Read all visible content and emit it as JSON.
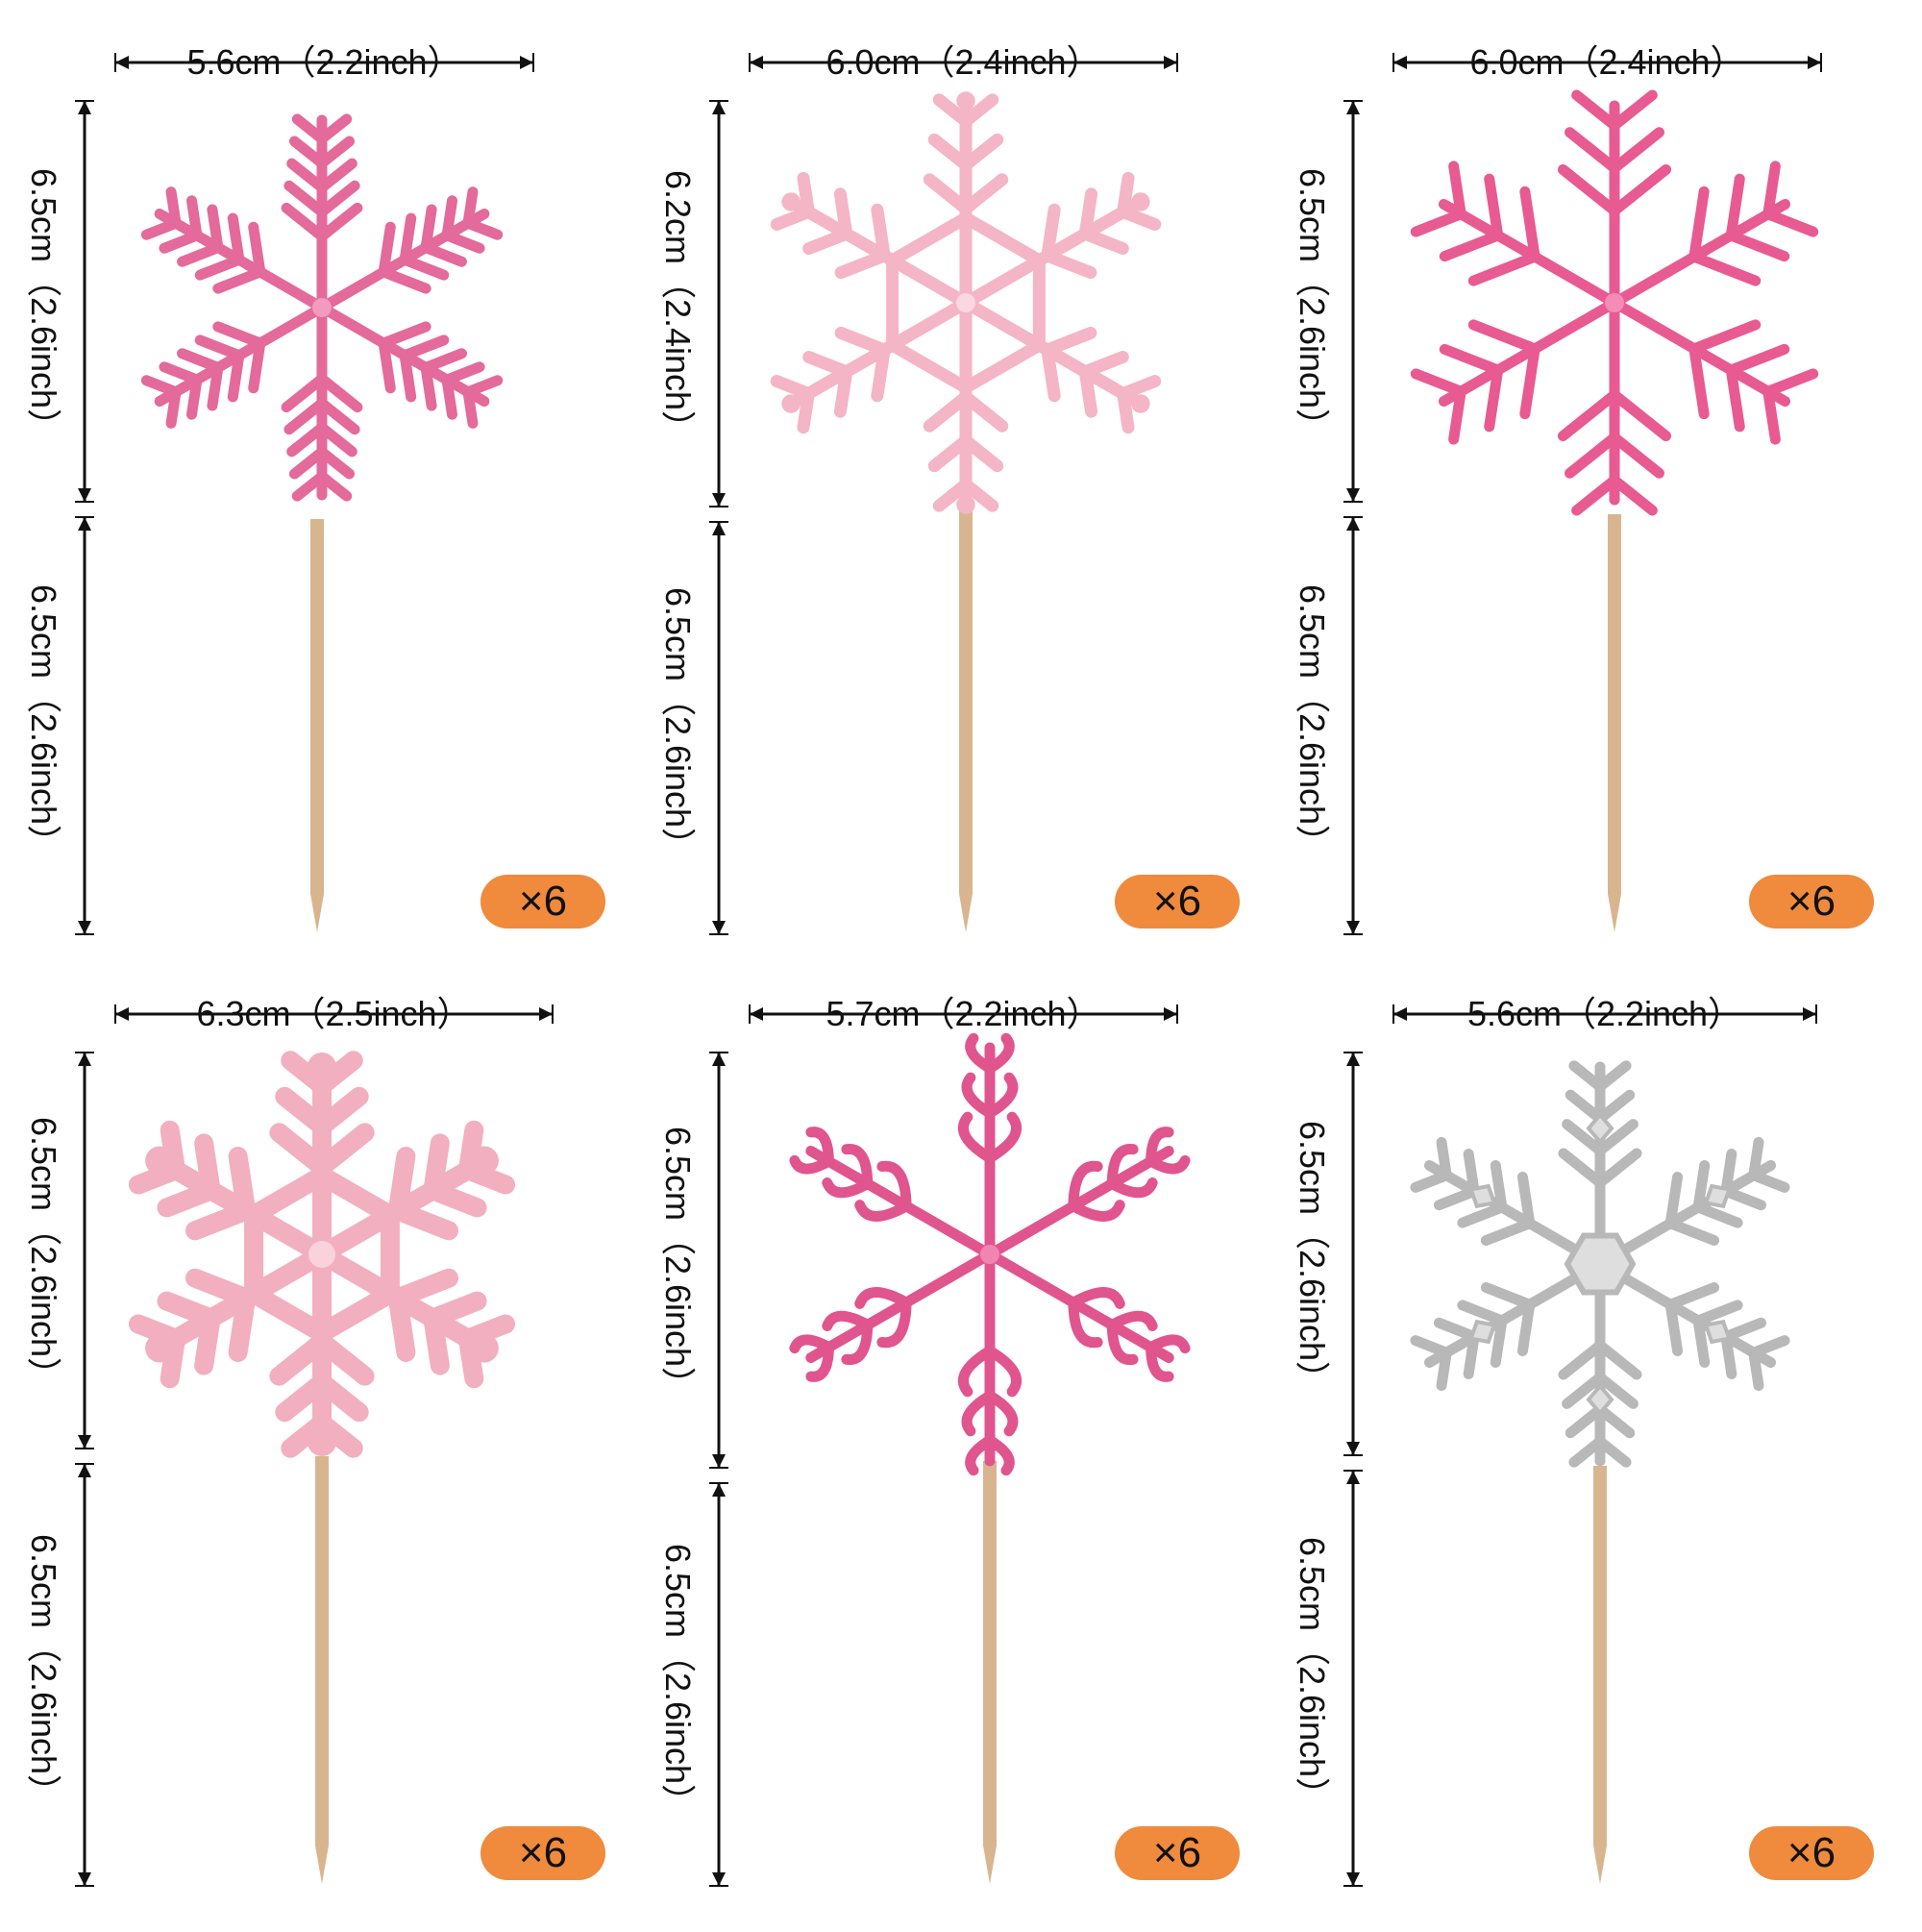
{
  "items": [
    {
      "width_label": "5.6cm（2.2inch）",
      "top_height_label": "6.5cm（2.6inch）",
      "stick_height_label": "6.5cm（2.6inch）",
      "quantity": "×6",
      "color": "#e36a9a",
      "color_light": "#f29bbe",
      "style": "fern"
    },
    {
      "width_label": "6.0cm（2.4inch）",
      "top_height_label": "6.2cm（2.4inch）",
      "stick_height_label": "6.5cm（2.6inch）",
      "quantity": "×6",
      "color": "#f4b5c6",
      "color_light": "#fbd7e1",
      "style": "rounded"
    },
    {
      "width_label": "6.0cm（2.4inch）",
      "top_height_label": "6.5cm（2.6inch）",
      "stick_height_label": "6.5cm（2.6inch）",
      "quantity": "×6",
      "color": "#e85a92",
      "color_light": "#f58cb5",
      "style": "spiky"
    },
    {
      "width_label": "6.3cm（2.5inch）",
      "top_height_label": "6.5cm（2.6inch）",
      "stick_height_label": "6.5cm（2.6inch）",
      "quantity": "×6",
      "color": "#f2afc0",
      "color_light": "#fad2dc",
      "style": "bold"
    },
    {
      "width_label": "5.7cm（2.2inch）",
      "top_height_label": "6.5cm（2.6inch）",
      "stick_height_label": "6.5cm（2.6inch）",
      "quantity": "×6",
      "color": "#e0558e",
      "color_light": "#f185b1",
      "style": "curly"
    },
    {
      "width_label": "5.6cm（2.2inch）",
      "top_height_label": "6.5cm（2.6inch）",
      "stick_height_label": "6.5cm（2.6inch）",
      "quantity": "×6",
      "color": "#b8b8b8",
      "color_light": "#dedede",
      "style": "crystal"
    }
  ],
  "icons": {
    "stick": "toothpick-stick",
    "dimension": "dimension-arrow",
    "flake": "snowflake-icon"
  },
  "colors": {
    "badge": "#f08a3c",
    "stick": "#d9b58f",
    "line": "#111111"
  }
}
